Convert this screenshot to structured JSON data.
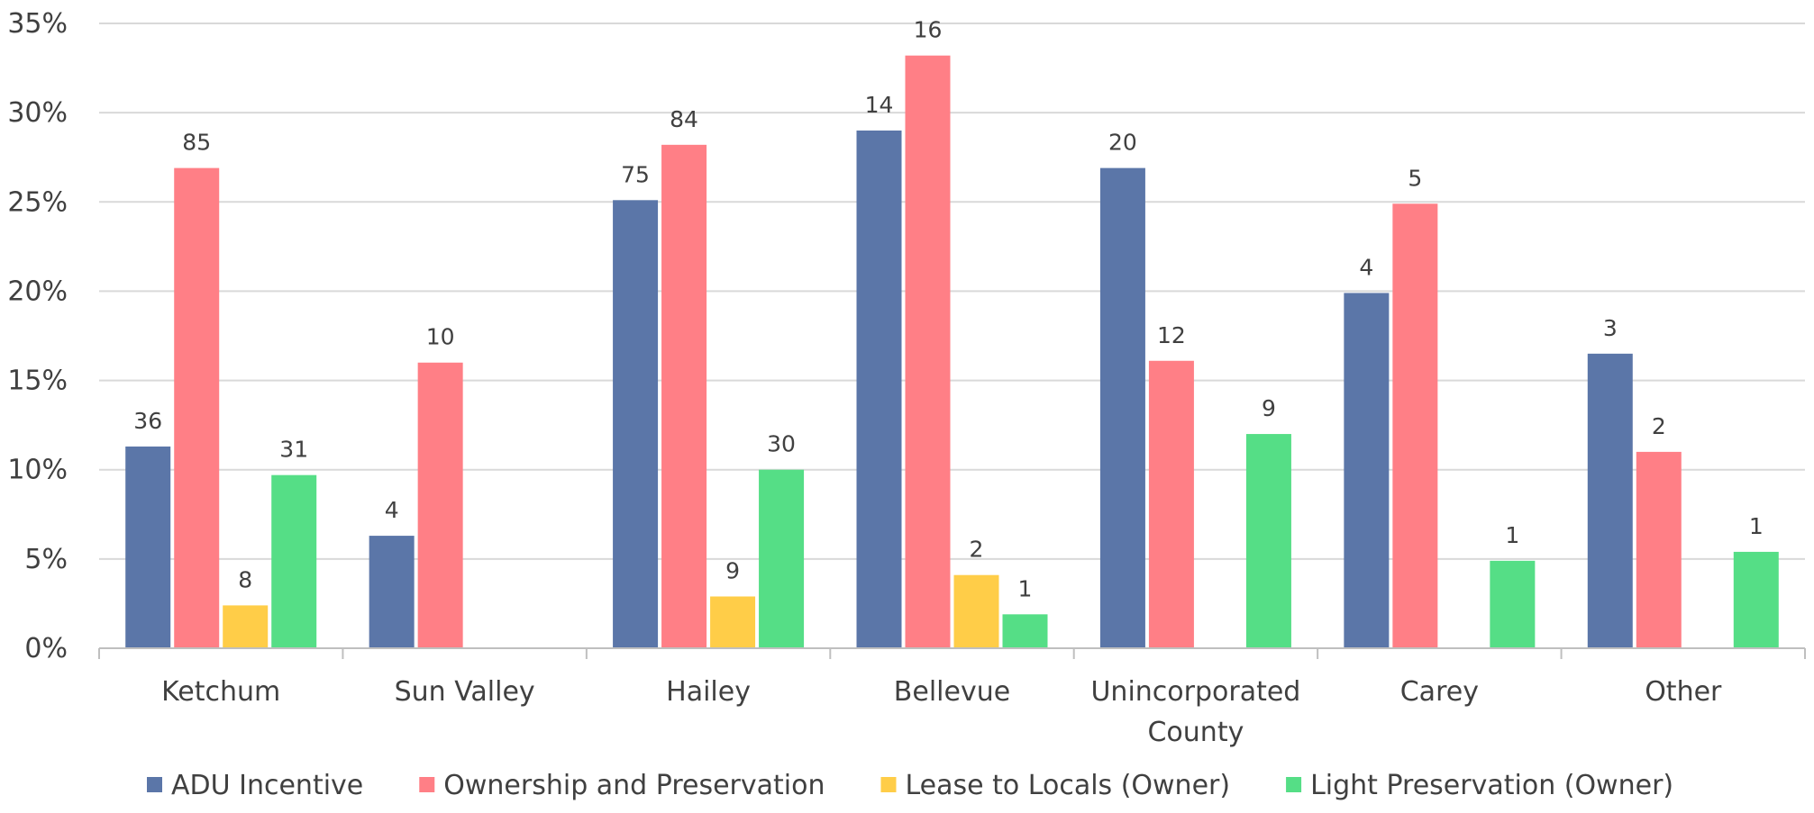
{
  "chart_data": {
    "type": "bar",
    "title": "",
    "xlabel": "",
    "ylabel": "",
    "ylim": [
      0,
      35
    ],
    "yticks": [
      "0%",
      "5%",
      "10%",
      "15%",
      "20%",
      "25%",
      "30%",
      "35%"
    ],
    "ytick_values": [
      0,
      5,
      10,
      15,
      20,
      25,
      30,
      35
    ],
    "grid": true,
    "legend_position": "bottom",
    "categories": [
      "Ketchum",
      "Sun Valley",
      "Hailey",
      "Bellevue",
      "Unincorporated County",
      "Carey",
      "Other"
    ],
    "category_label_lines": [
      [
        "Ketchum"
      ],
      [
        "Sun Valley"
      ],
      [
        "Hailey"
      ],
      [
        "Bellevue"
      ],
      [
        "Unincorporated",
        "County"
      ],
      [
        "Carey"
      ],
      [
        "Other"
      ]
    ],
    "series": [
      {
        "name": "ADU Incentive",
        "color": "#5B76A8",
        "values": [
          11.3,
          6.3,
          25.1,
          29.0,
          26.9,
          19.9,
          16.5
        ],
        "labels": [
          "36",
          "4",
          "75",
          "14",
          "20",
          "4",
          "3"
        ]
      },
      {
        "name": "Ownership and Preservation",
        "color": "#FF7F86",
        "values": [
          26.9,
          16.0,
          28.2,
          33.2,
          16.1,
          24.9,
          11.0
        ],
        "labels": [
          "85",
          "10",
          "84",
          "16",
          "12",
          "5",
          "2"
        ]
      },
      {
        "name": "Lease to Locals (Owner)",
        "color": "#FFCD48",
        "values": [
          2.4,
          null,
          2.9,
          4.1,
          null,
          null,
          null
        ],
        "labels": [
          "8",
          null,
          "9",
          "2",
          null,
          null,
          null
        ]
      },
      {
        "name": "Light Preservation (Owner)",
        "color": "#55DE86",
        "values": [
          9.7,
          null,
          10.0,
          1.9,
          12.0,
          4.9,
          5.4
        ],
        "labels": [
          "31",
          null,
          "30",
          "1",
          "9",
          "1",
          "1"
        ]
      }
    ]
  }
}
